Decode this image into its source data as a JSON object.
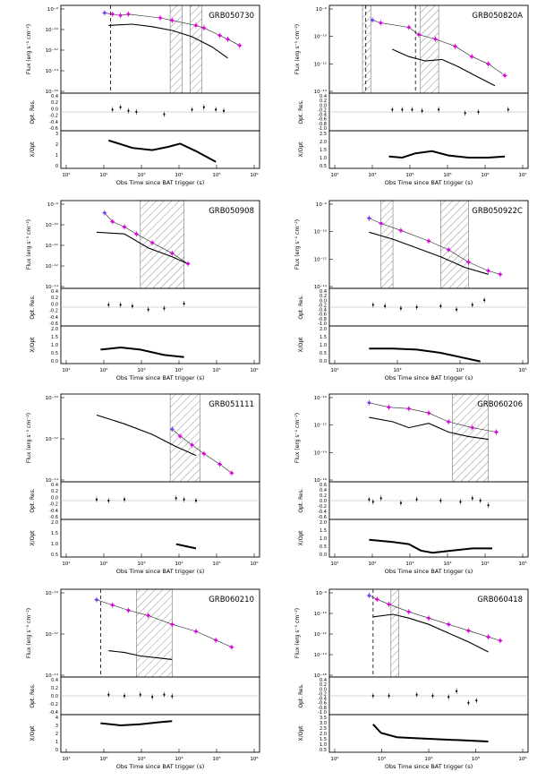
{
  "figure": {
    "y_label_flux": "Flux (erg s⁻¹ cm⁻²)",
    "y_label_res": "Opt. Res.",
    "y_label_ratio": "X/Opt",
    "x_label": "Obs Time since BAT trigger (s)",
    "colors": {
      "xray": "#e000e0",
      "bat": "#5050ff",
      "model": "#000000",
      "hatch": "#777777",
      "ref": "#aaaaaa"
    }
  },
  "chart_data": [
    {
      "type": "line",
      "title": "GRB050730",
      "xlim_exp": [
        1,
        6
      ],
      "flux_ylim_exp": [
        -16,
        -9
      ],
      "flux_ticks": [
        "10⁻⁹",
        "10⁻¹⁰",
        "10⁻¹²",
        "10⁻¹⁴",
        "10⁻¹⁶"
      ],
      "res_ticks": [
        "0.4",
        "0.2",
        "0.0",
        "-0.2",
        "-0.4",
        "-0.6"
      ],
      "ratio_ticks": [
        "3",
        "2",
        "1",
        "0"
      ],
      "xticks": [
        "10¹",
        "10²",
        "10³",
        "10⁴",
        "10⁵",
        "10⁶"
      ],
      "hatch": [
        [
          3.75,
          4.05
        ],
        [
          4.25,
          4.55
        ]
      ],
      "vlines": [
        2.25
      ],
      "xray": [
        [
          2.1,
          -9.6
        ],
        [
          2.3,
          -9.7
        ],
        [
          2.5,
          -9.8
        ],
        [
          2.7,
          -9.7
        ],
        [
          3.5,
          -10.0
        ],
        [
          3.8,
          -10.2
        ],
        [
          4.4,
          -10.6
        ],
        [
          4.6,
          -10.8
        ],
        [
          5.0,
          -11.4
        ],
        [
          5.2,
          -11.7
        ],
        [
          5.5,
          -12.2
        ]
      ],
      "opt_model": [
        [
          2.2,
          -10.6
        ],
        [
          2.8,
          -10.5
        ],
        [
          3.3,
          -10.7
        ],
        [
          3.8,
          -11.0
        ],
        [
          4.3,
          -11.5
        ],
        [
          4.8,
          -12.3
        ],
        [
          5.2,
          -13.2
        ]
      ],
      "res_pts": [
        [
          2.3,
          0.1
        ],
        [
          2.5,
          0.2
        ],
        [
          2.7,
          0.05
        ],
        [
          2.9,
          0.0
        ],
        [
          3.6,
          -0.1
        ],
        [
          4.3,
          0.1
        ],
        [
          4.6,
          0.2
        ],
        [
          4.9,
          0.1
        ],
        [
          5.1,
          0.05
        ]
      ],
      "ratio": [
        [
          2.2,
          2.6
        ],
        [
          2.8,
          1.9
        ],
        [
          3.3,
          1.7
        ],
        [
          3.7,
          2.0
        ],
        [
          4.0,
          2.3
        ],
        [
          4.4,
          1.6
        ],
        [
          4.9,
          0.6
        ]
      ]
    },
    {
      "type": "line",
      "title": "GRB050820A",
      "xlim_exp": [
        1,
        7
      ],
      "flux_ylim_exp": [
        -15,
        -9
      ],
      "flux_ticks": [
        "10⁻⁹",
        "10⁻¹⁰",
        "10⁻¹²",
        "10⁻¹⁴"
      ],
      "res_ticks": [
        "0.4",
        "0.2",
        "0.0",
        "-0.2",
        "-0.4",
        "-0.6",
        "-0.8",
        "-1.0"
      ],
      "ratio_ticks": [
        "2.5",
        "2.0",
        "1.5",
        "1.0",
        "0.5"
      ],
      "xticks": [
        "10²",
        "10³",
        "10⁴",
        "10⁵",
        "10⁶",
        "10⁷"
      ],
      "hatch": [
        [
          2.0,
          2.25
        ],
        [
          3.75,
          4.3
        ]
      ],
      "vlines": [
        2.1,
        3.6
      ],
      "xray": [
        [
          2.3,
          -10.0
        ],
        [
          2.55,
          -10.2
        ],
        [
          3.4,
          -10.5
        ],
        [
          3.7,
          -11.0
        ],
        [
          4.2,
          -11.3
        ],
        [
          4.8,
          -11.8
        ],
        [
          5.3,
          -12.5
        ],
        [
          5.8,
          -13.0
        ],
        [
          6.3,
          -13.8
        ]
      ],
      "opt_model": [
        [
          2.9,
          -12.0
        ],
        [
          3.4,
          -12.5
        ],
        [
          3.9,
          -12.8
        ],
        [
          4.4,
          -12.7
        ],
        [
          4.9,
          -13.2
        ],
        [
          5.4,
          -13.8
        ],
        [
          6.0,
          -14.5
        ]
      ],
      "res_pts": [
        [
          2.9,
          0.1
        ],
        [
          3.2,
          0.1
        ],
        [
          3.5,
          0.1
        ],
        [
          3.8,
          0.05
        ],
        [
          4.3,
          0.1
        ],
        [
          5.1,
          -0.05
        ],
        [
          5.5,
          0.0
        ],
        [
          6.4,
          0.1
        ]
      ],
      "ratio": [
        [
          2.8,
          1.1
        ],
        [
          3.2,
          1.0
        ],
        [
          3.6,
          1.4
        ],
        [
          4.1,
          1.6
        ],
        [
          4.6,
          1.2
        ],
        [
          5.2,
          1.0
        ],
        [
          5.8,
          1.0
        ],
        [
          6.3,
          1.1
        ]
      ]
    },
    {
      "type": "line",
      "title": "GRB050908",
      "xlim_exp": [
        1,
        6
      ],
      "flux_ylim_exp": [
        -14,
        -9
      ],
      "flux_ticks": [
        "10⁻⁹",
        "10⁻¹⁰",
        "10⁻¹¹",
        "10⁻¹²",
        "10⁻¹⁴"
      ],
      "res_ticks": [
        "0.4",
        "0.2",
        "0.0",
        "-0.2",
        "-0.4",
        "-0.6"
      ],
      "ratio_ticks": [
        "2.0",
        "1.5",
        "1.0",
        "0.5",
        "0.0"
      ],
      "xticks": [
        "10¹",
        "10²",
        "10³",
        "10⁴",
        "10⁵",
        "10⁶"
      ],
      "hatch": [
        [
          3.0,
          4.1
        ]
      ],
      "vlines": [],
      "xray": [
        [
          2.1,
          -9.7
        ],
        [
          2.3,
          -10.2
        ],
        [
          2.6,
          -10.5
        ],
        [
          2.9,
          -10.9
        ],
        [
          3.3,
          -11.4
        ],
        [
          3.8,
          -12.0
        ],
        [
          4.2,
          -12.6
        ]
      ],
      "opt_model": [
        [
          1.9,
          -10.8
        ],
        [
          2.6,
          -10.9
        ],
        [
          3.2,
          -11.7
        ],
        [
          3.8,
          -12.2
        ],
        [
          4.2,
          -12.6
        ]
      ],
      "res_pts": [
        [
          2.2,
          0.1
        ],
        [
          2.5,
          0.1
        ],
        [
          2.8,
          0.05
        ],
        [
          3.2,
          -0.1
        ],
        [
          3.6,
          -0.05
        ],
        [
          4.1,
          0.15
        ]
      ],
      "ratio": [
        [
          2.0,
          1.3
        ],
        [
          2.5,
          1.5
        ],
        [
          3.0,
          1.3
        ],
        [
          3.6,
          0.8
        ],
        [
          4.1,
          0.6
        ]
      ]
    },
    {
      "type": "line",
      "title": "GRB050922C",
      "xlim_exp": [
        1,
        6
      ],
      "flux_ylim_exp": [
        -14,
        -9
      ],
      "flux_ticks": [
        "10⁻⁹",
        "10⁻¹⁰",
        "10⁻¹²",
        "10⁻¹⁴"
      ],
      "res_ticks": [
        "0.4",
        "0.2",
        "0.0",
        "-0.2",
        "-0.4",
        "-0.6",
        "-0.8",
        "-1.0"
      ],
      "ratio_ticks": [
        "2.0",
        "1.5",
        "1.0",
        "0.5",
        "0.0"
      ],
      "xticks": [
        "10²",
        "10³",
        "10⁴",
        "10⁵"
      ],
      "hatch": [
        [
          2.3,
          2.6
        ],
        [
          3.8,
          4.5
        ]
      ],
      "vlines": [],
      "xray": [
        [
          2.0,
          -10.0
        ],
        [
          2.3,
          -10.3
        ],
        [
          2.8,
          -10.7
        ],
        [
          3.5,
          -11.3
        ],
        [
          4.0,
          -11.8
        ],
        [
          4.5,
          -12.5
        ],
        [
          5.0,
          -13.0
        ],
        [
          5.3,
          -13.2
        ]
      ],
      "opt_model": [
        [
          2.0,
          -10.8
        ],
        [
          2.6,
          -11.2
        ],
        [
          3.2,
          -11.7
        ],
        [
          3.8,
          -12.2
        ],
        [
          4.4,
          -12.8
        ],
        [
          5.0,
          -13.2
        ]
      ],
      "res_pts": [
        [
          2.1,
          0.1
        ],
        [
          2.4,
          0.05
        ],
        [
          2.8,
          -0.05
        ],
        [
          3.2,
          0.0
        ],
        [
          3.8,
          0.05
        ],
        [
          4.2,
          -0.1
        ],
        [
          4.6,
          0.1
        ],
        [
          4.9,
          0.3
        ]
      ],
      "ratio": [
        [
          2.0,
          1.4
        ],
        [
          2.6,
          1.4
        ],
        [
          3.2,
          1.3
        ],
        [
          3.8,
          1.0
        ],
        [
          4.3,
          0.6
        ],
        [
          4.8,
          0.2
        ]
      ]
    },
    {
      "type": "line",
      "title": "GRB051111",
      "xlim_exp": [
        1,
        6
      ],
      "flux_ylim_exp": [
        -14,
        -9
      ],
      "flux_ticks": [
        "10⁻¹⁰",
        "10⁻¹²",
        "10⁻¹⁴"
      ],
      "res_ticks": [
        "0.4",
        "0.2",
        "0.0",
        "-0.2",
        "-0.4",
        "-0.6"
      ],
      "ratio_ticks": [
        "2.0",
        "1.5",
        "1.0",
        "0.5"
      ],
      "xticks": [
        "10¹",
        "10²",
        "10³",
        "10⁴",
        "10⁵",
        "10⁶"
      ],
      "hatch": [
        [
          3.75,
          4.5
        ]
      ],
      "vlines": [],
      "xray": [
        [
          3.8,
          -11.0
        ],
        [
          4.0,
          -11.4
        ],
        [
          4.3,
          -11.9
        ],
        [
          4.6,
          -12.4
        ],
        [
          5.0,
          -13.0
        ],
        [
          5.3,
          -13.5
        ]
      ],
      "opt_model": [
        [
          1.9,
          -10.2
        ],
        [
          2.6,
          -10.7
        ],
        [
          3.3,
          -11.3
        ],
        [
          3.9,
          -12.0
        ],
        [
          4.4,
          -12.5
        ]
      ],
      "res_pts": [
        [
          1.9,
          0.05
        ],
        [
          2.2,
          0.0
        ],
        [
          2.6,
          0.05
        ],
        [
          3.9,
          0.1
        ],
        [
          4.1,
          0.05
        ],
        [
          4.4,
          0.0
        ]
      ],
      "ratio": [
        [
          3.9,
          1.2
        ],
        [
          4.4,
          0.8
        ]
      ]
    },
    {
      "type": "line",
      "title": "GRB060206",
      "xlim_exp": [
        1,
        6
      ],
      "flux_ylim_exp": [
        -16,
        -10
      ],
      "flux_ticks": [
        "10⁻¹⁰",
        "10⁻¹²",
        "10⁻¹⁴",
        "10⁻¹⁶"
      ],
      "res_ticks": [
        "0.6",
        "0.4",
        "0.2",
        "0.0",
        "-0.2",
        "-0.4",
        "-0.6"
      ],
      "ratio_ticks": [
        "2.0",
        "1.5",
        "1.0",
        "0.5",
        "0.0"
      ],
      "xticks": [
        "10¹",
        "10²",
        "10³",
        "10⁴",
        "10⁵",
        "10⁶"
      ],
      "hatch": [
        [
          4.1,
          5.0
        ]
      ],
      "vlines": [],
      "xray": [
        [
          2.0,
          -10.6
        ],
        [
          2.5,
          -10.9
        ],
        [
          3.0,
          -11.0
        ],
        [
          3.5,
          -11.3
        ],
        [
          4.0,
          -11.9
        ],
        [
          4.6,
          -12.3
        ],
        [
          5.2,
          -12.6
        ]
      ],
      "opt_model": [
        [
          2.0,
          -11.6
        ],
        [
          2.6,
          -11.9
        ],
        [
          3.0,
          -12.3
        ],
        [
          3.5,
          -12.0
        ],
        [
          4.0,
          -12.6
        ],
        [
          4.5,
          -12.9
        ],
        [
          5.0,
          -13.1
        ]
      ],
      "res_pts": [
        [
          2.0,
          0.05
        ],
        [
          2.1,
          -0.05
        ],
        [
          2.3,
          0.1
        ],
        [
          2.8,
          -0.1
        ],
        [
          3.2,
          0.05
        ],
        [
          3.8,
          0.0
        ],
        [
          4.3,
          -0.05
        ],
        [
          4.6,
          0.1
        ],
        [
          4.8,
          0.0
        ],
        [
          5.0,
          -0.2
        ]
      ],
      "ratio": [
        [
          2.0,
          1.6
        ],
        [
          2.6,
          1.4
        ],
        [
          3.0,
          1.2
        ],
        [
          3.3,
          0.6
        ],
        [
          3.6,
          0.4
        ],
        [
          4.1,
          0.6
        ],
        [
          4.6,
          0.8
        ],
        [
          5.1,
          0.8
        ]
      ]
    },
    {
      "type": "line",
      "title": "GRB060210",
      "xlim_exp": [
        1,
        6
      ],
      "flux_ylim_exp": [
        -14,
        -9
      ],
      "flux_ticks": [
        "10⁻¹⁰",
        "10⁻¹²",
        "10⁻¹⁴"
      ],
      "res_ticks": [
        "0.4",
        "0.2",
        "0.0",
        "-0.2",
        "-0.4"
      ],
      "ratio_ticks": [
        "4",
        "3",
        "2",
        "1",
        "0"
      ],
      "xticks": [
        "10¹",
        "10²",
        "10³",
        "10⁴",
        "10⁵",
        "10⁶"
      ],
      "hatch": [
        [
          2.9,
          3.8
        ]
      ],
      "vlines": [
        2.0
      ],
      "xray": [
        [
          1.9,
          -9.6
        ],
        [
          2.3,
          -9.9
        ],
        [
          2.7,
          -10.2
        ],
        [
          3.2,
          -10.5
        ],
        [
          3.8,
          -11.0
        ],
        [
          4.4,
          -11.4
        ],
        [
          4.9,
          -11.9
        ],
        [
          5.3,
          -12.3
        ]
      ],
      "opt_model": [
        [
          2.2,
          -12.5
        ],
        [
          2.6,
          -12.6
        ],
        [
          3.0,
          -12.8
        ],
        [
          3.4,
          -12.9
        ],
        [
          3.8,
          -13.0
        ]
      ],
      "res_pts": [
        [
          2.2,
          0.05
        ],
        [
          2.6,
          0.0
        ],
        [
          3.0,
          0.05
        ],
        [
          3.3,
          -0.05
        ],
        [
          3.6,
          0.05
        ],
        [
          3.8,
          -0.02
        ]
      ],
      "ratio": [
        [
          2.0,
          2.7
        ],
        [
          2.5,
          2.5
        ],
        [
          3.0,
          2.6
        ],
        [
          3.5,
          2.8
        ],
        [
          3.8,
          2.9
        ]
      ]
    },
    {
      "type": "line",
      "title": "GRB060418",
      "xlim_exp": [
        1,
        6
      ],
      "flux_ylim_exp": [
        -16,
        -9
      ],
      "flux_ticks": [
        "10⁻⁹",
        "10⁻¹⁰",
        "10⁻¹²",
        "10⁻¹⁴",
        "10⁻¹⁶"
      ],
      "res_ticks": [
        "0.4",
        "0.2",
        "0.0",
        "-0.2",
        "-0.4",
        "-0.6",
        "-0.8",
        "-1.0"
      ],
      "ratio_ticks": [
        "3.5",
        "3.0",
        "2.5",
        "2.0",
        "1.5",
        "1.0",
        "0.5"
      ],
      "xticks": [
        "10²",
        "10³",
        "10⁴",
        "10⁵",
        "10⁶"
      ],
      "hatch": [
        [
          2.55,
          2.75
        ]
      ],
      "vlines": [
        2.1
      ],
      "xray": [
        [
          2.0,
          -9.5
        ],
        [
          2.2,
          -9.8
        ],
        [
          2.5,
          -10.2
        ],
        [
          3.0,
          -10.8
        ],
        [
          3.5,
          -11.3
        ],
        [
          4.0,
          -11.8
        ],
        [
          4.5,
          -12.3
        ],
        [
          5.0,
          -12.8
        ],
        [
          5.3,
          -13.1
        ]
      ],
      "opt_model": [
        [
          2.1,
          -11.2
        ],
        [
          2.6,
          -11.0
        ],
        [
          3.0,
          -11.3
        ],
        [
          3.5,
          -11.8
        ],
        [
          4.0,
          -12.5
        ],
        [
          4.5,
          -13.2
        ],
        [
          5.0,
          -14.0
        ]
      ],
      "res_pts": [
        [
          2.1,
          0.0
        ],
        [
          2.5,
          0.0
        ],
        [
          3.2,
          0.05
        ],
        [
          3.6,
          0.0
        ],
        [
          4.0,
          -0.05
        ],
        [
          4.2,
          0.2
        ],
        [
          4.5,
          -0.3
        ],
        [
          4.7,
          -0.2
        ]
      ],
      "ratio": [
        [
          2.1,
          2.6
        ],
        [
          2.3,
          1.8
        ],
        [
          2.7,
          1.4
        ],
        [
          3.2,
          1.3
        ],
        [
          3.8,
          1.2
        ],
        [
          4.4,
          1.1
        ],
        [
          5.0,
          1.0
        ]
      ]
    }
  ]
}
